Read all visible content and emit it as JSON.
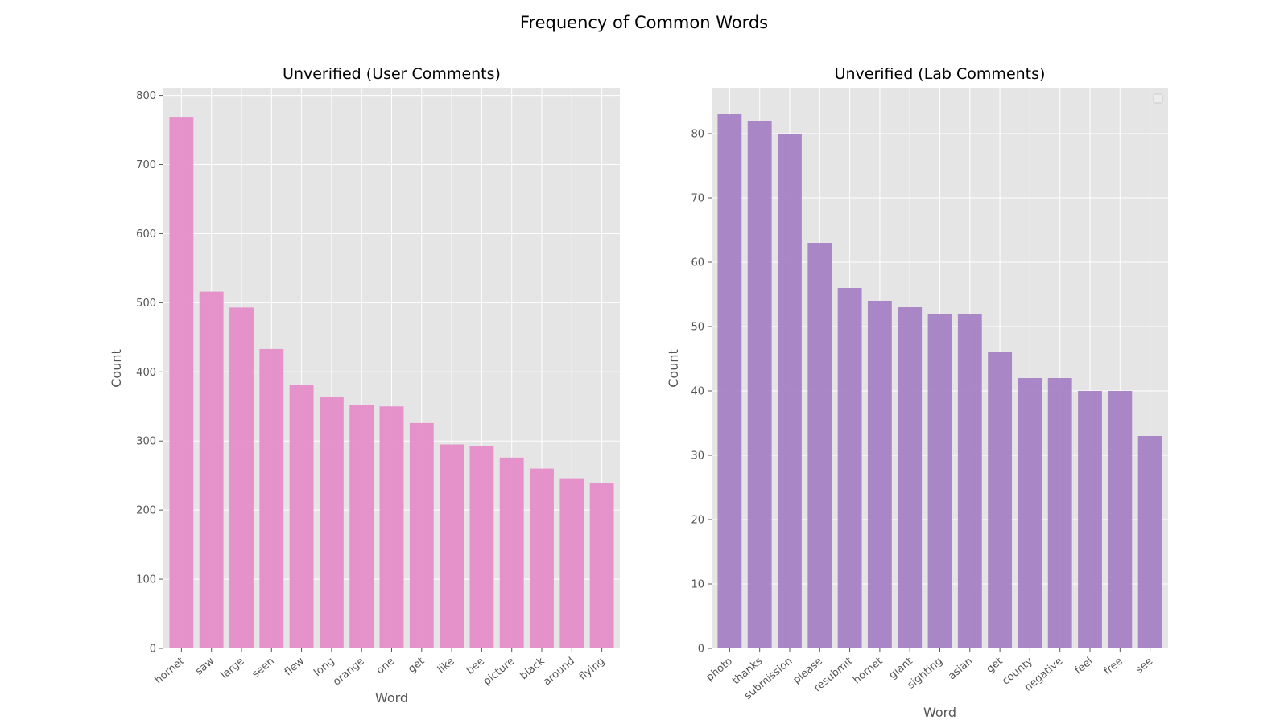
{
  "figure": {
    "title": "Frequency of Common Words"
  },
  "chart_data": [
    {
      "type": "bar",
      "title": "Unverified (User Comments)",
      "xlabel": "Word",
      "ylabel": "Count",
      "ylim": [
        0,
        810
      ],
      "yticks": [
        0,
        100,
        200,
        300,
        400,
        500,
        600,
        700,
        800
      ],
      "grid": true,
      "legend": false,
      "bar_color": "#e58cc8",
      "background": "#e5e5e5",
      "categories": [
        "hornet",
        "saw",
        "large",
        "seen",
        "flew",
        "long",
        "orange",
        "one",
        "get",
        "like",
        "bee",
        "picture",
        "black",
        "around",
        "flying"
      ],
      "values": [
        768,
        516,
        493,
        433,
        381,
        364,
        352,
        350,
        326,
        295,
        293,
        276,
        260,
        246,
        239
      ]
    },
    {
      "type": "bar",
      "title": "Unverified (Lab Comments)",
      "xlabel": "Word",
      "ylabel": "Count",
      "ylim": [
        0,
        87
      ],
      "yticks": [
        0,
        10,
        20,
        30,
        40,
        50,
        60,
        70,
        80
      ],
      "grid": true,
      "legend": "top-right",
      "bar_color": "#a582c5",
      "background": "#e5e5e5",
      "categories": [
        "photo",
        "thanks",
        "submission",
        "please",
        "resubmit",
        "hornet",
        "giant",
        "sighting",
        "asian",
        "get",
        "county",
        "negative",
        "feel",
        "free",
        "see"
      ],
      "values": [
        83,
        82,
        80,
        63,
        56,
        54,
        53,
        52,
        52,
        46,
        42,
        42,
        40,
        40,
        33
      ]
    }
  ]
}
